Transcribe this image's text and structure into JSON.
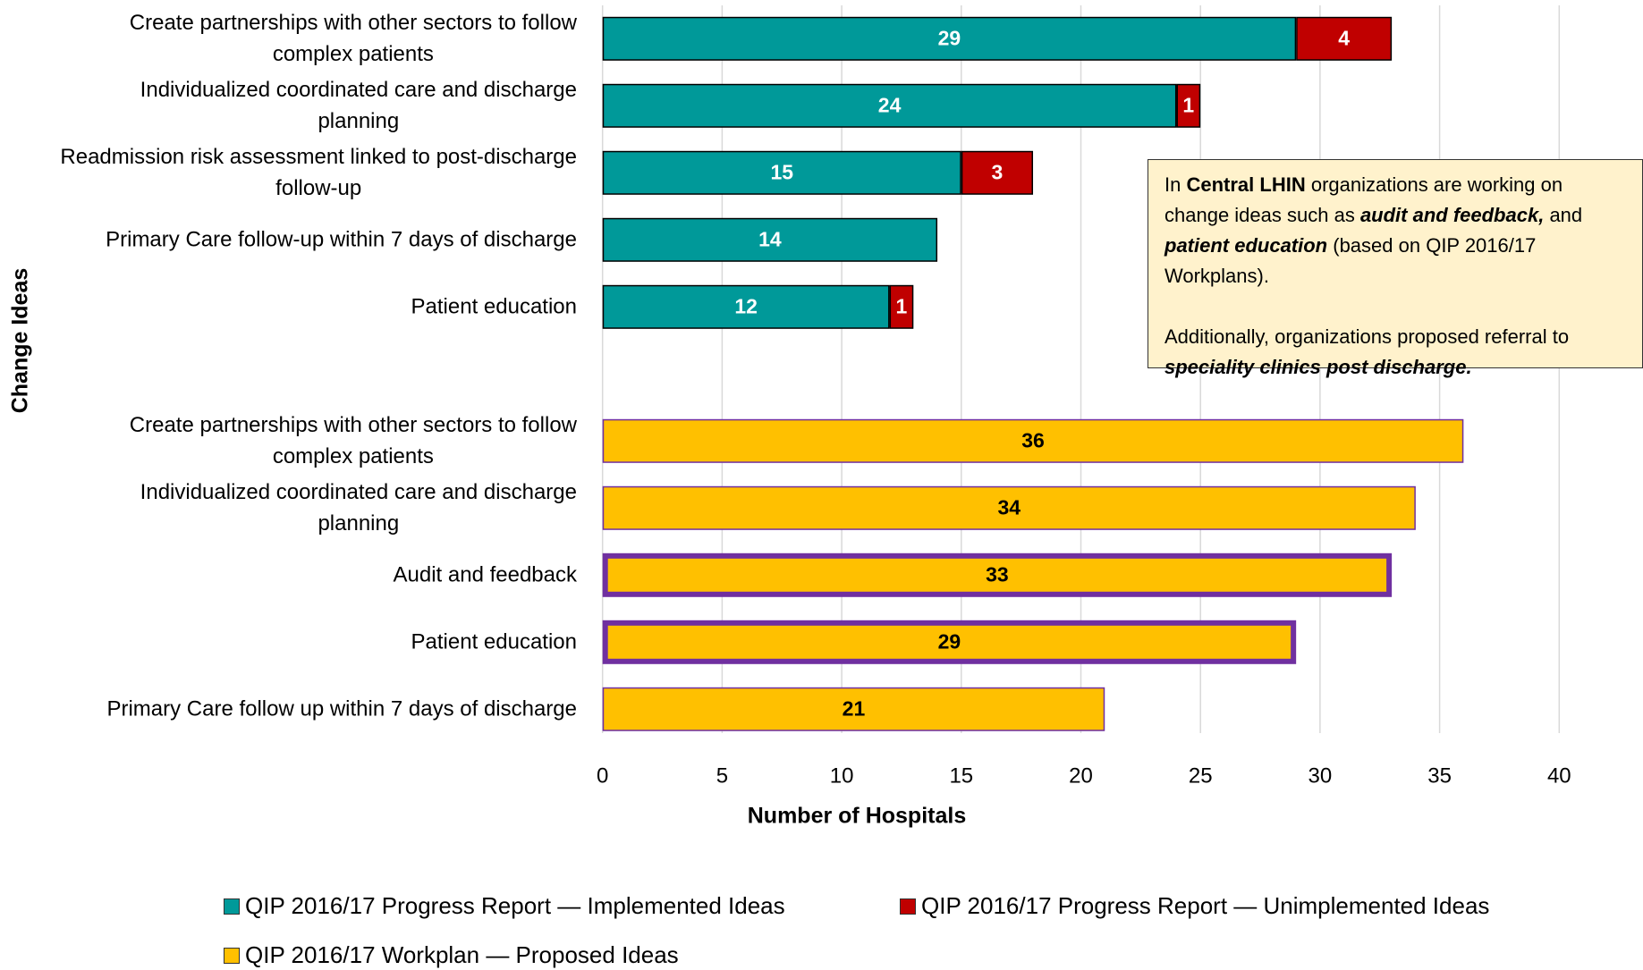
{
  "chart_data": {
    "type": "stacked_barh",
    "x_label": "Number of Hospitals",
    "y_label": "Change Ideas",
    "categories": [
      "Create partnerships with other sectors to follow\ncomplex patients",
      "Individualized coordinated care and discharge\nplanning",
      "Readmission risk assessment linked to post-discharge\nfollow-up",
      "Primary Care follow-up within 7 days of discharge",
      "Patient education",
      null,
      "Create partnerships with other sectors to follow\ncomplex patients",
      "Individualized coordinated care and discharge\nplanning",
      "Audit and feedback",
      "Patient education",
      "Primary Care follow up within 7 days of discharge"
    ],
    "series": [
      {
        "name": "QIP 2016/17 Progress Report — Implemented Ideas",
        "color": "#009999",
        "edgecolor": "#000000",
        "label_color": "#ffffff",
        "values": [
          29,
          24,
          15,
          14,
          12,
          null,
          null,
          null,
          null,
          null,
          null
        ]
      },
      {
        "name": "QIP 2016/17 Progress Report — Unimplemented Ideas",
        "color": "#c00000",
        "edgecolor": "#000000",
        "label_color": "#ffffff",
        "values": [
          4,
          1,
          3,
          null,
          1,
          null,
          null,
          null,
          null,
          null,
          null
        ]
      },
      {
        "name": "QIP 2016/17 Workplan — Proposed Ideas",
        "color": "#ffc000",
        "edgecolor": "#7030a0",
        "label_color": "#000000",
        "edge_widths": [
          null,
          null,
          null,
          null,
          null,
          null,
          1.5,
          1.5,
          6,
          6,
          1.5
        ],
        "values": [
          null,
          null,
          null,
          null,
          null,
          null,
          36,
          34,
          33,
          29,
          21
        ]
      }
    ],
    "xlim": [
      0,
      40
    ],
    "xticks": [
      0,
      5,
      10,
      15,
      20,
      25,
      30,
      35,
      40
    ],
    "grid": true,
    "legend": "bottom",
    "annotation": [
      [
        {
          "text": "In "
        },
        {
          "text": "Central LHIN",
          "bold": true
        },
        {
          "text": " organizations are working on change ideas such as "
        },
        {
          "text": "audit and feedback,",
          "bold": true,
          "italic": true
        },
        {
          "text": " and "
        },
        {
          "text": "patient education",
          "bold": true,
          "italic": true
        },
        {
          "text": " (based on QIP 2016/17 Workplans)."
        }
      ],
      [
        {
          "text": "Additionally, organizations proposed referral to "
        },
        {
          "text": "speciality clinics post discharge.",
          "bold": true,
          "italic": true
        }
      ]
    ]
  }
}
